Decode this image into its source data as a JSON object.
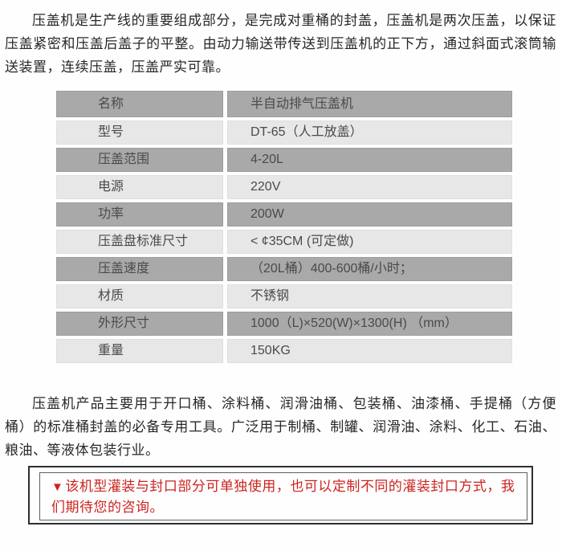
{
  "intro_paragraph": "压盖机是生产线的重要组成部分，是完成对重桶的封盖，压盖机是两次压盖，以保证压盖紧密和压盖后盖子的平整。由动力输送带传送到压盖机的正下方，通过斜面式滚筒输送装置，连续压盖，压盖严实可靠。",
  "spec_table": {
    "rows": [
      {
        "label": "名称",
        "value": "半自动排气压盖机"
      },
      {
        "label": "型号",
        "value": "DT-65（人工放盖）"
      },
      {
        "label": "压盖范围",
        "value": "4-20L"
      },
      {
        "label": "电源",
        "value": "220V"
      },
      {
        "label": "功率",
        "value": "200W"
      },
      {
        "label": "压盖盘标准尺寸",
        "value": "< ¢35CM (可定做)"
      },
      {
        "label": "压盖速度",
        "value": "（20L桶）400-600桶/小时；"
      },
      {
        "label": "材质",
        "value": "不锈钢"
      },
      {
        "label": "外形尺寸",
        "value": "1000（L)×520(W)×1300(H) （mm）"
      },
      {
        "label": "重量",
        "value": "150KG"
      }
    ]
  },
  "usage_paragraph": "压盖机产品主要用于开口桶、涂料桶、润滑油桶、包装桶、油漆桶、手提桶（方便桶）的标准桶封盖的必备专用工具。广泛用于制桶、制罐、润滑油、涂料、化工、石油、粮油、等液体包装行业。",
  "notice": {
    "marker": "▼",
    "text": "该机型灌装与封口部分可单独使用，也可以定制不同的灌装封口方式，我们期待您的咨询。"
  },
  "colors": {
    "row_dark": "#a9a9a9",
    "row_light": "#e7e7e7",
    "notice_red": "#cc231f",
    "body_text": "#272727",
    "table_text": "#4a4a4a"
  }
}
